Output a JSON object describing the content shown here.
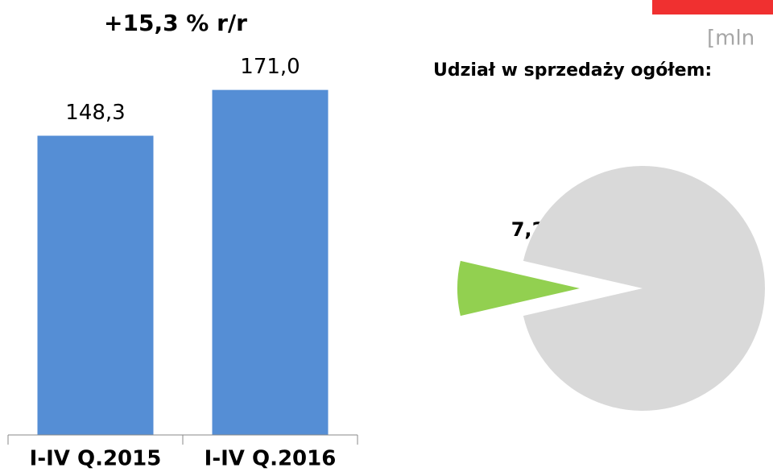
{
  "header": {
    "unit": "[mln"
  },
  "chart_data": [
    {
      "type": "bar",
      "title": "+15,3 % r/r",
      "categories": [
        "I-IV Q.2015",
        "I-IV Q.2016"
      ],
      "values": [
        148.3,
        171.0
      ],
      "value_labels": [
        "148,3",
        "171,0"
      ],
      "color": "#558ed5",
      "ylim": [
        0,
        200
      ]
    },
    {
      "type": "pie",
      "title": "Udział w sprzedaży ogółem:",
      "values": [
        7.2,
        92.8
      ],
      "value_labels": [
        "7,2%",
        null
      ],
      "colors": [
        "#92d050",
        "#d9d9d9"
      ]
    }
  ]
}
